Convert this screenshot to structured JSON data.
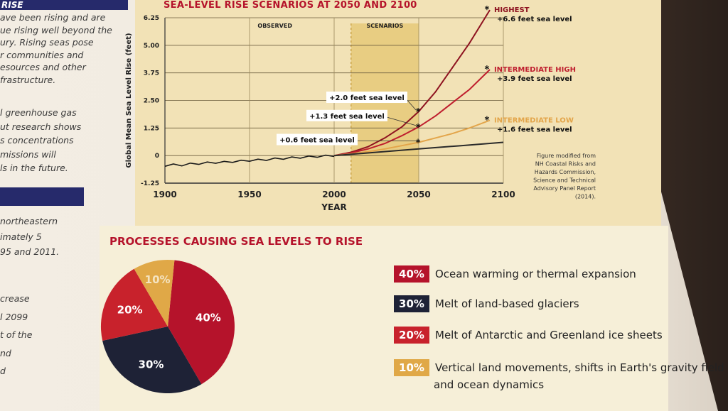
{
  "left_column": {
    "heading": "RISE",
    "paragraph1": [
      "ave been rising and are",
      "ue rising well beyond the",
      "ury. Rising seas pose",
      "r communities and",
      "esources and other",
      "frastructure."
    ],
    "paragraph2": [
      "l greenhouse gas",
      "ut research shows",
      "s concentrations",
      "missions will",
      "ls in the future."
    ],
    "paragraph3": [
      "northeastern",
      "imately 5",
      "95 and 2011."
    ],
    "paragraph4": [
      "crease",
      "l 2099",
      "t of the",
      "nd",
      "d"
    ]
  },
  "colors": {
    "title_red": "#b5132b",
    "navy": "#262a6b",
    "chart_bg": "#f2e2b6",
    "scenario_band": "#e8cd82",
    "highest": "#8e1320",
    "intermediate_high": "#bf1e2e",
    "intermediate_low": "#e3a54a",
    "baseline": "#2a2a2a",
    "pie_red": "#b5132b",
    "pie_navy": "#1e2236",
    "pie_red2": "#c8222c",
    "pie_gold": "#e0a847"
  },
  "chart_data": [
    {
      "type": "line",
      "title": "SEA-LEVEL RISE SCENARIOS AT 2050 AND 2100",
      "xlabel": "YEAR",
      "ylabel": "Global Mean Sea Level Rise (feet)",
      "xlim": [
        1900,
        2100
      ],
      "ylim": [
        -1.25,
        6.25
      ],
      "x_ticks": [
        "1900",
        "1950",
        "2000",
        "2050",
        "2100"
      ],
      "y_ticks": [
        "6.25",
        "5.00",
        "3.75",
        "2.50",
        "1.25",
        "0",
        "-1.25"
      ],
      "regions": [
        {
          "label": "OBSERVED",
          "from": 1950,
          "to": 2000
        },
        {
          "label": "SCENARIOS",
          "from": 2010,
          "to": 2050
        }
      ],
      "series": [
        {
          "name": "HIGHEST",
          "color_key": "highest",
          "label": "+6.6 feet sea level",
          "x": [
            2000,
            2010,
            2020,
            2030,
            2040,
            2050,
            2060,
            2070,
            2080,
            2092
          ],
          "y": [
            0,
            0.15,
            0.4,
            0.8,
            1.3,
            2.0,
            2.9,
            4.0,
            5.1,
            6.6
          ]
        },
        {
          "name": "INTERMEDIATE HIGH",
          "color_key": "intermediate_high",
          "label": "+3.9 feet sea level",
          "x": [
            2000,
            2010,
            2020,
            2030,
            2040,
            2050,
            2060,
            2070,
            2080,
            2092
          ],
          "y": [
            0,
            0.12,
            0.3,
            0.55,
            0.9,
            1.3,
            1.8,
            2.4,
            3.0,
            3.9
          ]
        },
        {
          "name": "INTERMEDIATE LOW",
          "color_key": "intermediate_low",
          "label": "+1.6 feet sea level",
          "x": [
            2000,
            2010,
            2020,
            2030,
            2040,
            2050,
            2060,
            2070,
            2080,
            2092
          ],
          "y": [
            0,
            0.08,
            0.18,
            0.3,
            0.45,
            0.6,
            0.8,
            1.0,
            1.25,
            1.6
          ]
        },
        {
          "name": "",
          "color_key": "baseline",
          "label": "",
          "x": [
            2000,
            2025,
            2050,
            2075,
            2100
          ],
          "y": [
            0,
            0.15,
            0.3,
            0.45,
            0.6
          ]
        }
      ],
      "observed": {
        "x": [
          1900,
          1905,
          1910,
          1915,
          1920,
          1925,
          1930,
          1935,
          1940,
          1945,
          1950,
          1955,
          1960,
          1965,
          1970,
          1975,
          1980,
          1985,
          1990,
          1995,
          2000
        ],
        "y": [
          -0.45,
          -0.42,
          -0.43,
          -0.38,
          -0.36,
          -0.33,
          -0.31,
          -0.3,
          -0.27,
          -0.25,
          -0.22,
          -0.2,
          -0.18,
          -0.15,
          -0.13,
          -0.1,
          -0.08,
          -0.06,
          -0.04,
          -0.02,
          0
        ]
      },
      "callouts_2050": [
        {
          "label": "+2.0 feet sea level",
          "y": 2.0
        },
        {
          "label": "+1.3 feet sea level",
          "y": 1.3
        },
        {
          "label": "+0.6 feet sea level",
          "y": 0.6
        }
      ],
      "source_note": [
        "Figure modified from",
        "NH Coastal Risks and",
        "Hazards Commission,",
        "Science and Technical",
        "Advisory Panel Report",
        "(2014)."
      ]
    },
    {
      "type": "pie",
      "title": "PROCESSES CAUSING SEA LEVELS TO RISE",
      "slices": [
        {
          "label": "40%",
          "value": 40,
          "description": "Ocean warming or thermal expansion",
          "color_key": "pie_red"
        },
        {
          "label": "30%",
          "value": 30,
          "description": "Melt of land-based glaciers",
          "color_key": "pie_navy"
        },
        {
          "label": "20%",
          "value": 20,
          "description": "Melt of Antarctic and Greenland ice sheets",
          "color_key": "pie_red2"
        },
        {
          "label": "10%",
          "value": 10,
          "description": "Vertical land movements, shifts in Earth's gravity field",
          "description2": "and ocean dynamics",
          "color_key": "pie_gold"
        }
      ]
    }
  ]
}
